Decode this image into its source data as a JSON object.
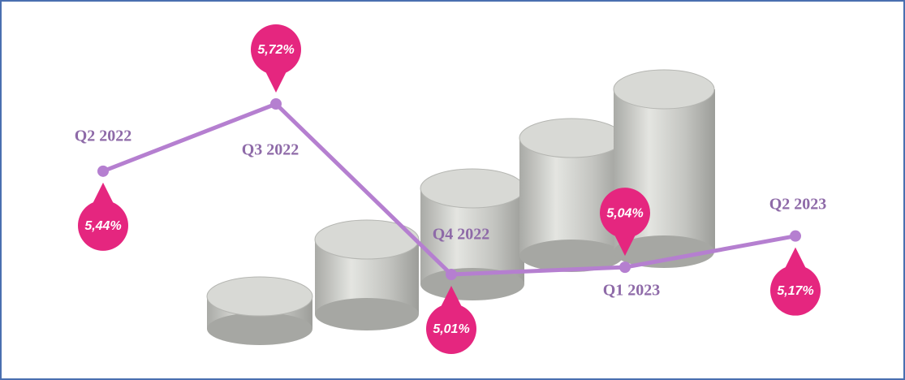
{
  "chart_data": {
    "type": "line",
    "categories": [
      "Q2 2022",
      "Q3 2022",
      "Q4 2022",
      "Q1 2023",
      "Q2 2023"
    ],
    "values": [
      5.44,
      5.72,
      5.01,
      5.04,
      5.17
    ],
    "value_labels": [
      "5,44%",
      "5,72%",
      "5,01%",
      "5,04%",
      "5,17%"
    ],
    "color": "#b57fd0",
    "label_color": "#e5267f"
  }
}
